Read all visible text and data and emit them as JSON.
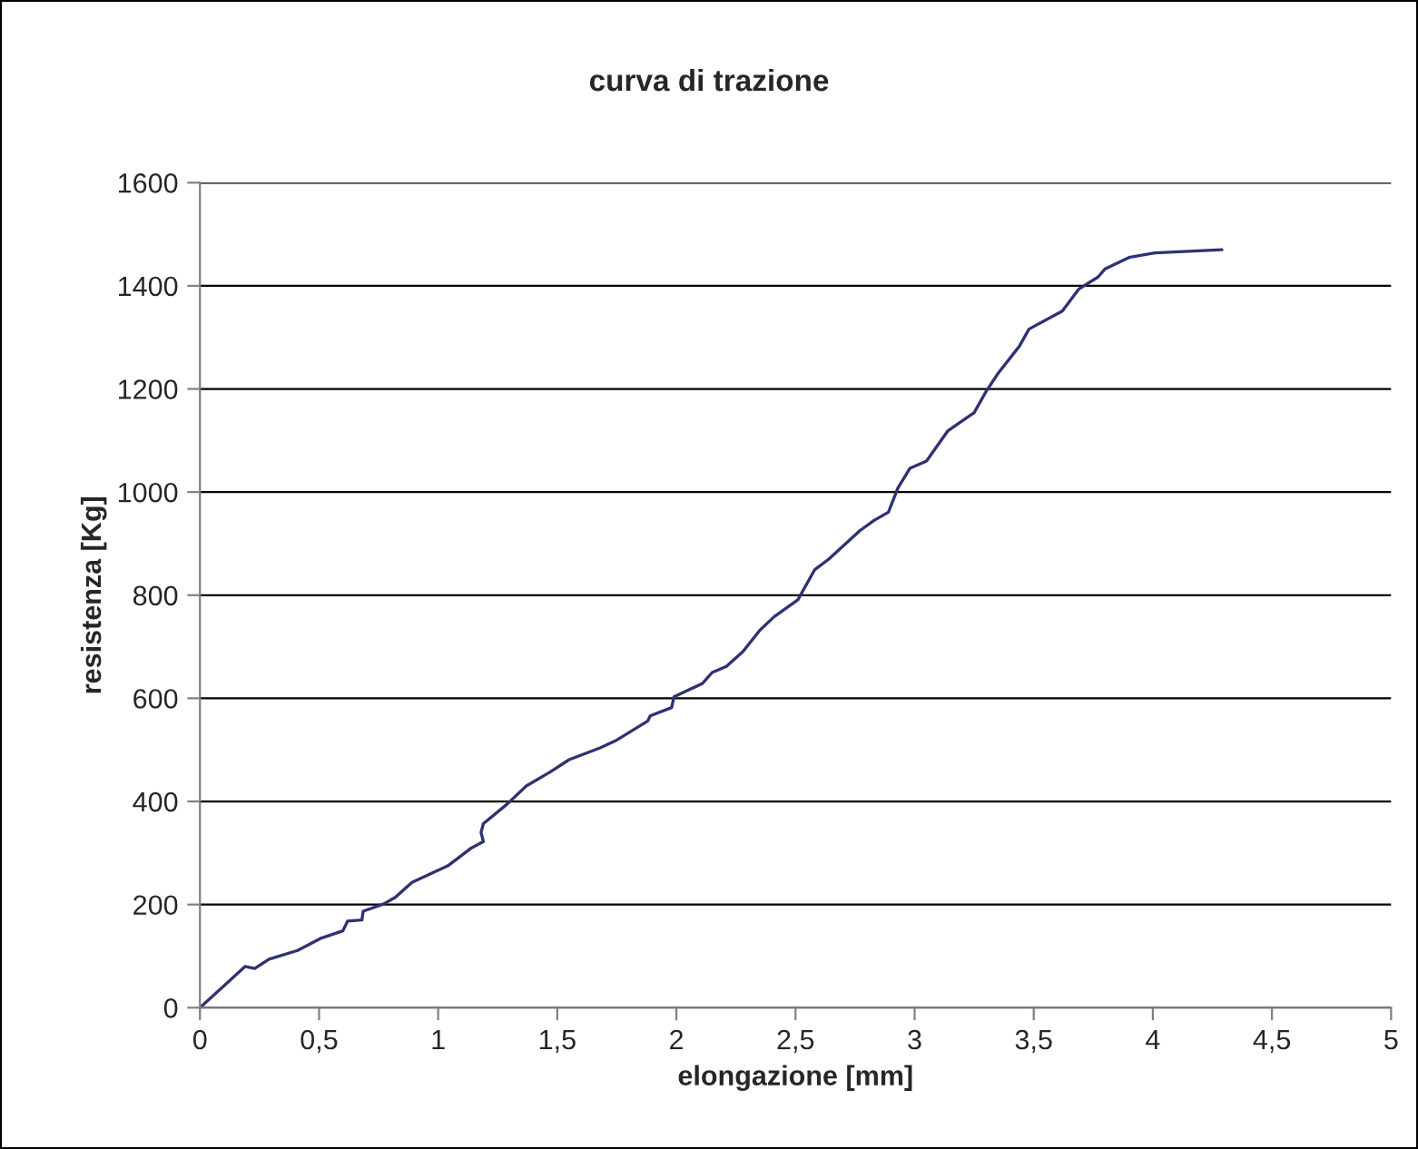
{
  "chart_data": {
    "type": "line",
    "title": "curva di trazione",
    "xlabel": "elongazione [mm]",
    "ylabel": "resistenza [Kg]",
    "series": [
      {
        "color": "#2e3272",
        "x": [
          0,
          0.19,
          0.23,
          0.29,
          0.41,
          0.51,
          0.6,
          0.62,
          0.68,
          0.685,
          0.77,
          0.82,
          0.89,
          1.04,
          1.14,
          1.19,
          1.18,
          1.19,
          1.29,
          1.37,
          1.47,
          1.55,
          1.68,
          1.75,
          1.88,
          1.89,
          1.98,
          1.99,
          2.11,
          2.15,
          2.21,
          2.28,
          2.35,
          2.41,
          2.51,
          2.58,
          2.64,
          2.77,
          2.83,
          2.89,
          2.93,
          2.98,
          3.05,
          3.14,
          3.25,
          3.3,
          3.35,
          3.44,
          3.48,
          3.62,
          3.69,
          3.77,
          3.8,
          3.9,
          4.01,
          4.29
        ],
        "values": [
          0,
          80,
          76,
          94,
          111,
          135,
          149,
          168,
          170,
          187,
          201,
          214,
          243,
          275,
          310,
          322,
          340,
          357,
          395,
          430,
          457,
          481,
          504,
          519,
          556,
          566,
          582,
          603,
          629,
          650,
          662,
          691,
          732,
          758,
          791,
          849,
          870,
          925,
          945,
          961,
          1008,
          1046,
          1060,
          1119,
          1154,
          1195,
          1230,
          1283,
          1316,
          1351,
          1394,
          1417,
          1433,
          1455,
          1464,
          1470
        ]
      }
    ],
    "xlim": [
      0,
      5
    ],
    "ylim": [
      0,
      1600
    ],
    "xticks": [
      0,
      {
        "value": 0.5,
        "label": "0,5"
      },
      1,
      {
        "value": 1.5,
        "label": "1,5"
      },
      2,
      {
        "value": 2.5,
        "label": "2,5"
      },
      3,
      {
        "value": 3.5,
        "label": "3,5"
      },
      4,
      {
        "value": 4.5,
        "label": "4,5"
      },
      5
    ],
    "yticks": [
      0,
      200,
      400,
      600,
      800,
      1000,
      1200,
      1400,
      1600
    ],
    "grid": "y",
    "legend": false,
    "marker": "none",
    "line_style": "solid"
  }
}
